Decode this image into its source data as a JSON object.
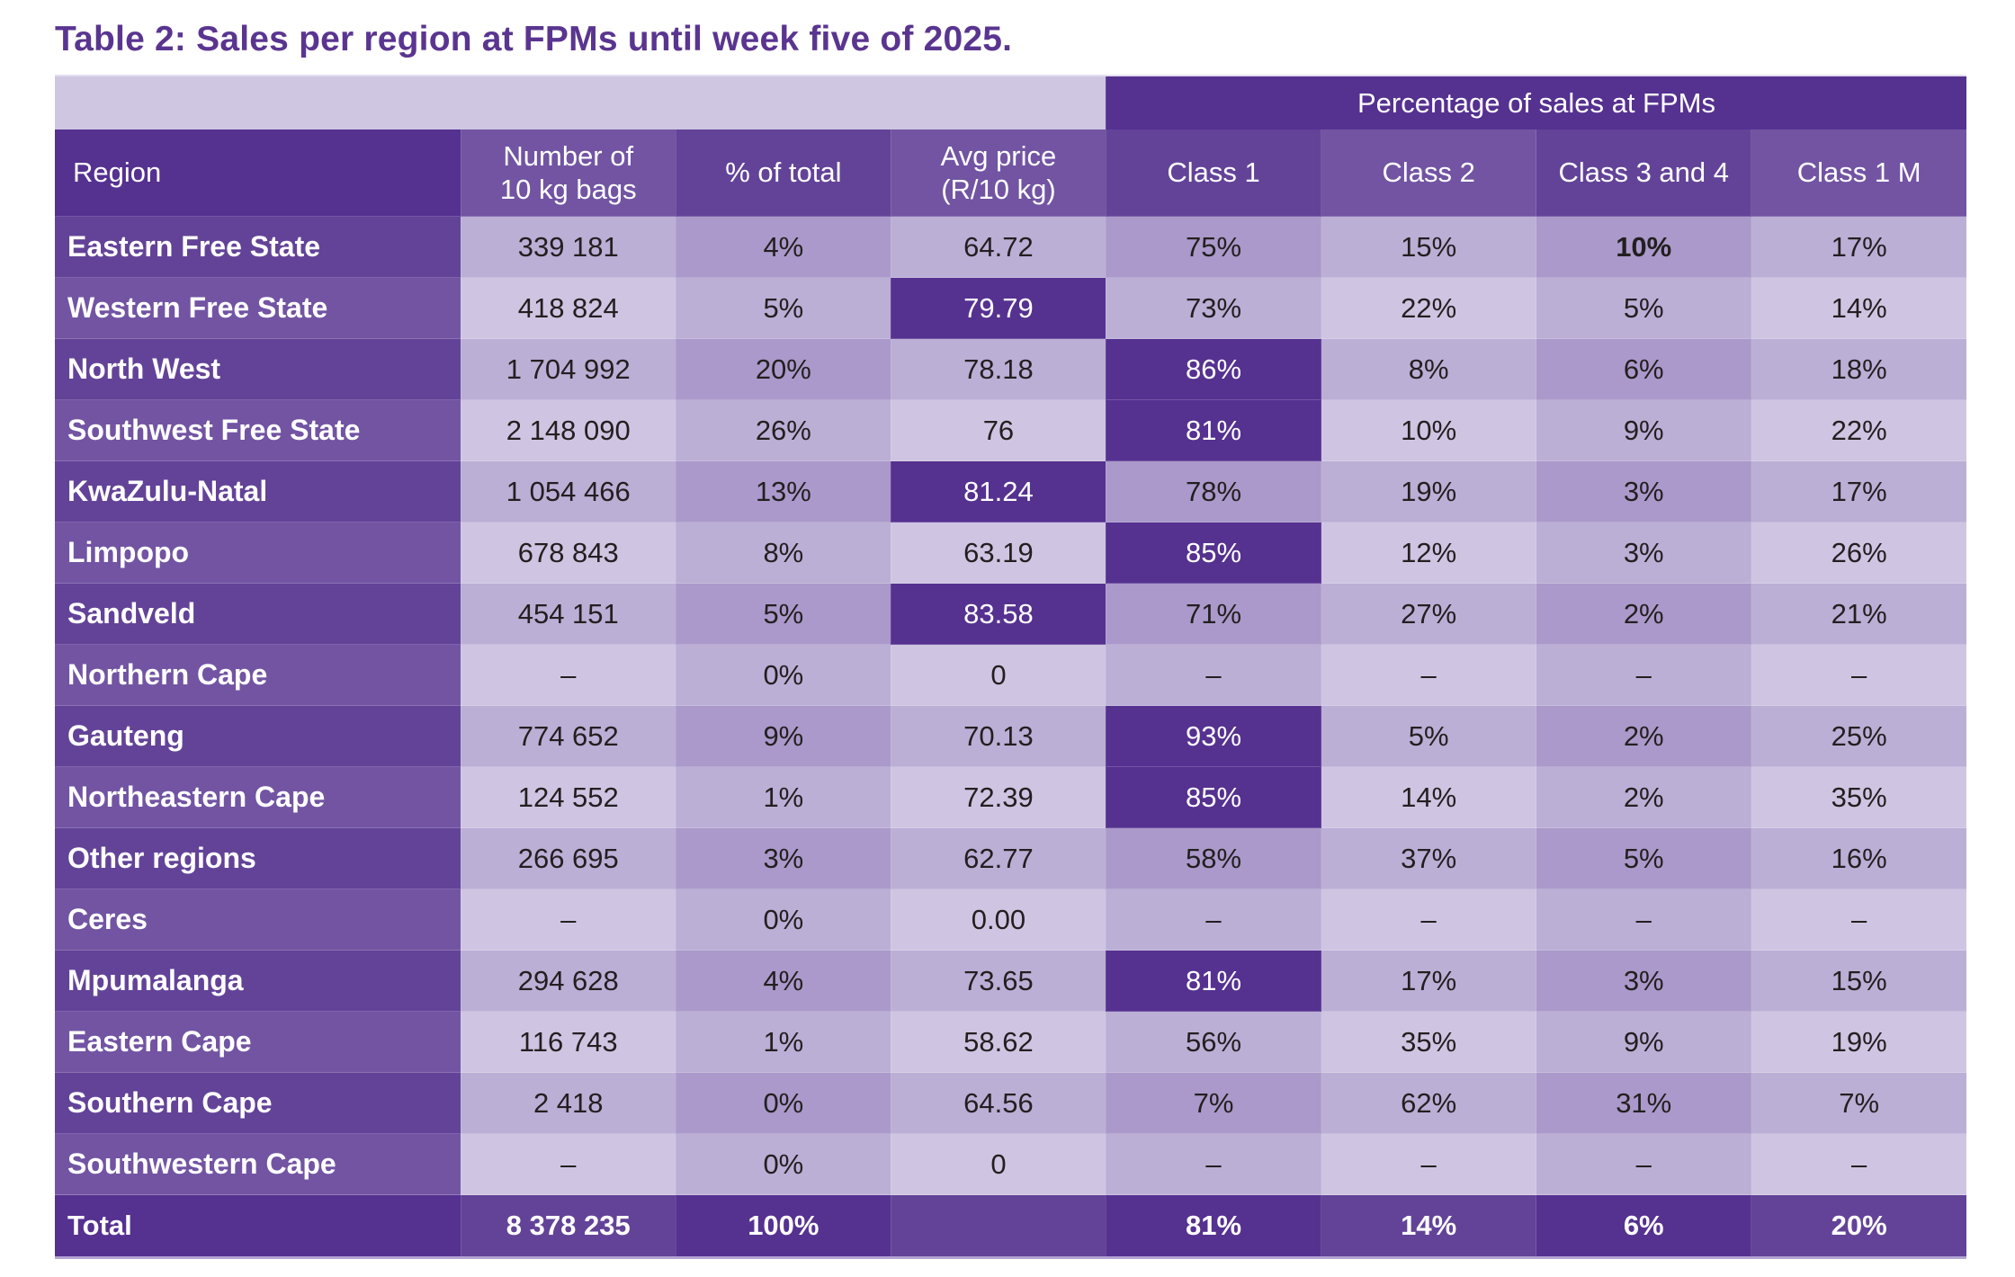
{
  "title": "Table 2: Sales per region at FPMs until week five of 2025.",
  "table": {
    "group_header": "Percentage of sales at FPMs",
    "columns": {
      "region": "Region",
      "bags_line1": "Number of",
      "bags_line2": "10 kg bags",
      "pct_total": "% of total",
      "avg_line1": "Avg price",
      "avg_line2": "(R/10 kg)",
      "class1": "Class 1",
      "class2": "Class 2",
      "class34": "Class 3 and 4",
      "class1m": "Class 1 M"
    },
    "rows": [
      {
        "region": "Eastern Free State",
        "bags": "339 181",
        "pct": "4%",
        "avg": "64.72",
        "c1": "75%",
        "c2": "15%",
        "c34": "10%",
        "c1m": "17%"
      },
      {
        "region": "Western Free State",
        "bags": "418 824",
        "pct": "5%",
        "avg": "79.79",
        "c1": "73%",
        "c2": "22%",
        "c34": "5%",
        "c1m": "14%"
      },
      {
        "region": "North West",
        "bags": "1 704 992",
        "pct": "20%",
        "avg": "78.18",
        "c1": "86%",
        "c2": "8%",
        "c34": "6%",
        "c1m": "18%"
      },
      {
        "region": "Southwest Free State",
        "bags": "2 148 090",
        "pct": "26%",
        "avg": "76",
        "c1": "81%",
        "c2": "10%",
        "c34": "9%",
        "c1m": "22%"
      },
      {
        "region": "KwaZulu-Natal",
        "bags": "1 054 466",
        "pct": "13%",
        "avg": "81.24",
        "c1": "78%",
        "c2": "19%",
        "c34": "3%",
        "c1m": "17%"
      },
      {
        "region": "Limpopo",
        "bags": "678 843",
        "pct": "8%",
        "avg": "63.19",
        "c1": "85%",
        "c2": "12%",
        "c34": "3%",
        "c1m": "26%"
      },
      {
        "region": "Sandveld",
        "bags": "454 151",
        "pct": "5%",
        "avg": "83.58",
        "c1": "71%",
        "c2": "27%",
        "c34": "2%",
        "c1m": "21%"
      },
      {
        "region": "Northern Cape",
        "bags": "–",
        "pct": "0%",
        "avg": "0",
        "c1": "–",
        "c2": "–",
        "c34": "–",
        "c1m": "–"
      },
      {
        "region": "Gauteng",
        "bags": "774 652",
        "pct": "9%",
        "avg": "70.13",
        "c1": "93%",
        "c2": "5%",
        "c34": "2%",
        "c1m": "25%"
      },
      {
        "region": "Northeastern Cape",
        "bags": "124 552",
        "pct": "1%",
        "avg": "72.39",
        "c1": "85%",
        "c2": "14%",
        "c34": "2%",
        "c1m": "35%"
      },
      {
        "region": "Other regions",
        "bags": "266 695",
        "pct": "3%",
        "avg": "62.77",
        "c1": "58%",
        "c2": "37%",
        "c34": "5%",
        "c1m": "16%"
      },
      {
        "region": "Ceres",
        "bags": "–",
        "pct": "0%",
        "avg": "0.00",
        "c1": "–",
        "c2": "–",
        "c34": "–",
        "c1m": "–"
      },
      {
        "region": "Mpumalanga",
        "bags": "294 628",
        "pct": "4%",
        "avg": "73.65",
        "c1": "81%",
        "c2": "17%",
        "c34": "3%",
        "c1m": "15%"
      },
      {
        "region": "Eastern Cape",
        "bags": "116 743",
        "pct": "1%",
        "avg": "58.62",
        "c1": "56%",
        "c2": "35%",
        "c34": "9%",
        "c1m": "19%"
      },
      {
        "region": "Southern Cape",
        "bags": "2 418",
        "pct": "0%",
        "avg": "64.56",
        "c1": "7%",
        "c2": "62%",
        "c34": "31%",
        "c1m": "7%"
      },
      {
        "region": "Southwestern Cape",
        "bags": "–",
        "pct": "0%",
        "avg": "0",
        "c1": "–",
        "c2": "–",
        "c34": "–",
        "c1m": "–"
      }
    ],
    "total": {
      "region": "Total",
      "bags": "8 378 235",
      "pct": "100%",
      "avg": "",
      "c1": "81%",
      "c2": "14%",
      "c34": "6%",
      "c1m": "20%"
    },
    "highlight_color": "#553190",
    "highlights": [
      {
        "row": 1,
        "col": "avg"
      },
      {
        "row": 2,
        "col": "c1"
      },
      {
        "row": 3,
        "col": "c1"
      },
      {
        "row": 4,
        "col": "avg"
      },
      {
        "row": 5,
        "col": "c1"
      },
      {
        "row": 6,
        "col": "avg"
      },
      {
        "row": 8,
        "col": "c1"
      },
      {
        "row": 9,
        "col": "c1"
      },
      {
        "row": 12,
        "col": "c1"
      }
    ],
    "bold_cells": [
      {
        "row": 0,
        "col": "c34"
      }
    ]
  }
}
